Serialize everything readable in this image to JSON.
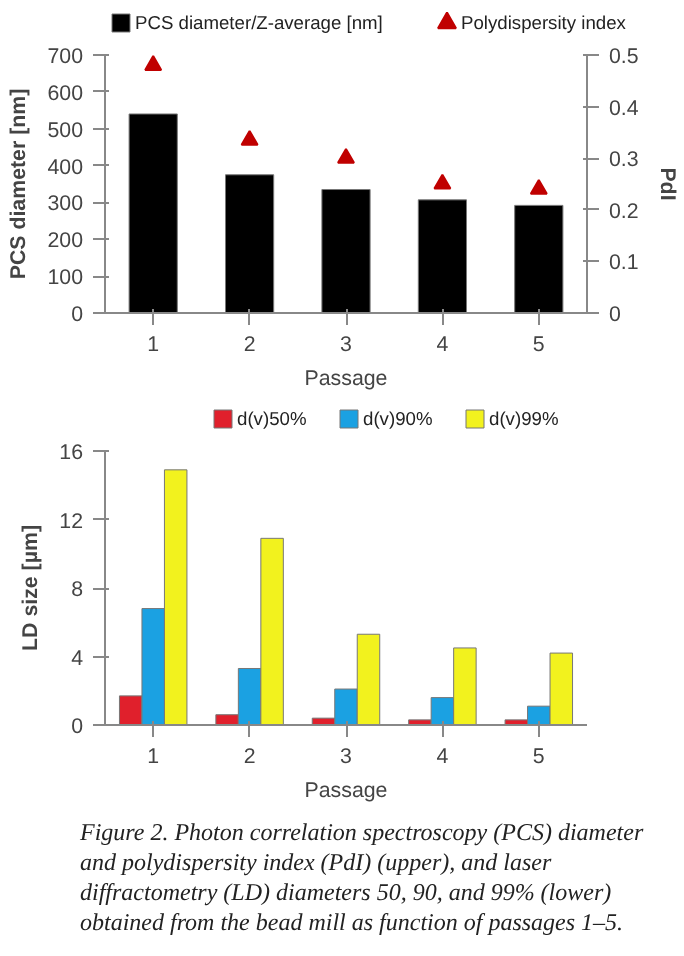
{
  "chart_data": [
    {
      "type": "bar",
      "categories": [
        "1",
        "2",
        "3",
        "4",
        "5"
      ],
      "xlabel": "Passage",
      "ylabel": "PCS diameter [nm]",
      "y2label": "PdI",
      "ylim": [
        0,
        700
      ],
      "yticks": [
        0,
        100,
        200,
        300,
        400,
        500,
        600,
        700
      ],
      "y2lim": [
        0,
        0.5
      ],
      "y2ticks": [
        0,
        0.1,
        0.2,
        0.3,
        0.4,
        0.5
      ],
      "legend": "top",
      "series": [
        {
          "name": "PCS diameter/Z-average [nm]",
          "color": "#000000",
          "values": [
            540,
            375,
            335,
            307,
            292
          ]
        },
        {
          "name": "Polydispersity index",
          "type": "scatter",
          "marker": "triangle",
          "axis": "y2",
          "color": "#c00000",
          "values": [
            0.48,
            0.335,
            0.3,
            0.25,
            0.24
          ]
        }
      ]
    },
    {
      "type": "bar",
      "categories": [
        "1",
        "2",
        "3",
        "4",
        "5"
      ],
      "xlabel": "Passage",
      "ylabel": "LD size [µm]",
      "ylim": [
        0,
        16
      ],
      "yticks": [
        0,
        4,
        8,
        12,
        16
      ],
      "legend": "top",
      "series": [
        {
          "name": "d(v)50%",
          "color": "#e0202c",
          "values": [
            1.7,
            0.6,
            0.4,
            0.3,
            0.3
          ]
        },
        {
          "name": "d(v)90%",
          "color": "#1ba1e2",
          "values": [
            6.8,
            3.3,
            2.1,
            1.6,
            1.1
          ]
        },
        {
          "name": "d(v)99%",
          "color": "#f2f21e",
          "values": [
            14.9,
            10.9,
            5.3,
            4.5,
            4.2
          ]
        }
      ],
      "annotations": [
        "Figure 2. Photon correlation spectroscopy (PCS) diameter and polydispersity index (PdI) (upper), and laser diffractometry (LD) diameters 50, 90, and 99% (lower) obtained from the bead mill as function of passages 1–5."
      ]
    }
  ]
}
